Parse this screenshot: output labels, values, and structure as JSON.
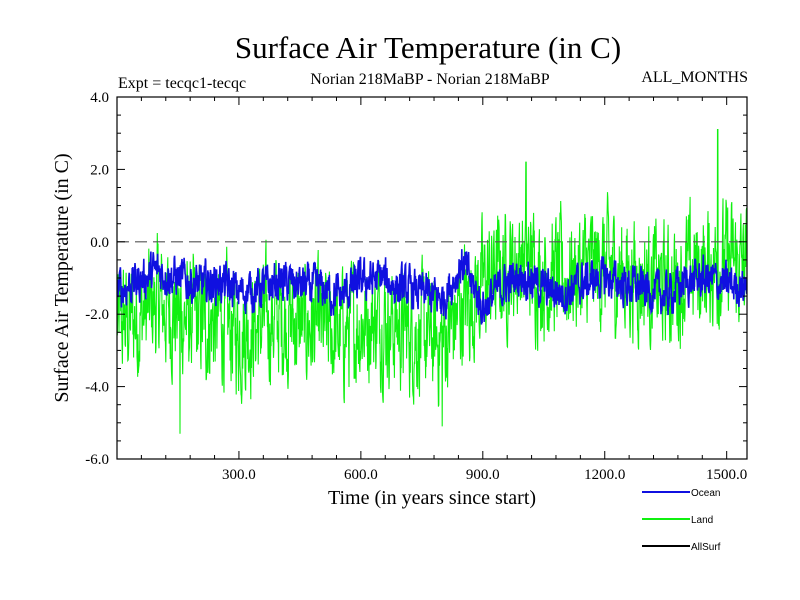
{
  "chart_data": {
    "type": "line",
    "title": "Surface Air Temperature (in C)",
    "subtitle_left": "Expt = tecqc1-tecqc",
    "subtitle_center": "Norian 218MaBP - Norian 218MaBP",
    "subtitle_right": "ALL_MONTHS",
    "xlabel": "Time (in years since start)",
    "ylabel": "Surface Air Temperature (in C)",
    "xlim": [
      0,
      1550
    ],
    "ylim": [
      -6.0,
      4.0
    ],
    "xticks": [
      300,
      600,
      900,
      1200,
      1500
    ],
    "xtick_labels": [
      "300.0",
      "600.0",
      "900.0",
      "1200.0",
      "1500.0"
    ],
    "yticks": [
      -6,
      -4,
      -2,
      0,
      2,
      4
    ],
    "ytick_labels": [
      "-6.0",
      "-4.0",
      "-2.0",
      "0.0",
      "2.0",
      "4.0"
    ],
    "reference_line_y": 0.0,
    "legend_position": "bottom-right, outside plot",
    "series": [
      {
        "name": "Ocean",
        "color": "#1010e0",
        "x": [
          0,
          50,
          100,
          150,
          200,
          250,
          300,
          350,
          400,
          450,
          500,
          550,
          600,
          650,
          700,
          750,
          800,
          850,
          900,
          950,
          1000,
          1050,
          1100,
          1150,
          1200,
          1250,
          1300,
          1350,
          1400,
          1450,
          1500,
          1550
        ],
        "mean": [
          -1.3,
          -1.1,
          -0.8,
          -1.0,
          -1.2,
          -1.1,
          -1.4,
          -1.3,
          -1.1,
          -1.2,
          -1.3,
          -1.5,
          -1.1,
          -1.0,
          -1.3,
          -1.4,
          -1.6,
          -0.6,
          -1.8,
          -1.2,
          -0.9,
          -1.3,
          -1.4,
          -1.1,
          -1.0,
          -1.2,
          -1.3,
          -1.5,
          -1.1,
          -1.0,
          -1.2,
          -1.2
        ],
        "amplitude": 0.45
      },
      {
        "name": "Land",
        "color": "#10f010",
        "x": [
          0,
          50,
          100,
          150,
          200,
          250,
          300,
          350,
          400,
          450,
          500,
          550,
          600,
          650,
          700,
          750,
          800,
          850,
          900,
          950,
          1000,
          1050,
          1100,
          1150,
          1200,
          1250,
          1300,
          1350,
          1400,
          1450,
          1500,
          1550
        ],
        "mean": [
          -2.3,
          -2.1,
          -1.7,
          -2.0,
          -2.3,
          -2.2,
          -2.5,
          -2.3,
          -2.1,
          -2.3,
          -2.4,
          -2.6,
          -2.2,
          -2.1,
          -2.4,
          -2.6,
          -2.8,
          -1.8,
          -1.2,
          -0.8,
          -0.5,
          -0.9,
          -1.0,
          -0.8,
          -0.7,
          -0.9,
          -1.0,
          -1.3,
          -0.9,
          -0.7,
          -0.6,
          -0.8
        ],
        "amplitude": 1.3,
        "extremes": [
          {
            "x": 155,
            "y": -5.3
          },
          {
            "x": 800,
            "y": -5.1
          },
          {
            "x": 1006,
            "y": 2.2
          },
          {
            "x": 1478,
            "y": 3.1
          }
        ]
      },
      {
        "name": "AllSurf",
        "color": "#000000",
        "x": [],
        "mean": [],
        "amplitude": 0
      }
    ]
  }
}
